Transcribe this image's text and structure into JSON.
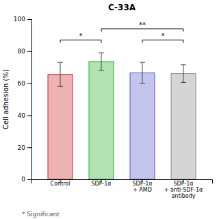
{
  "chart_data": {
    "type": "bar",
    "title": "C-33A",
    "categories": [
      "Control",
      "SDF-1α",
      "SDF-1α\n+ AMD",
      "SDF-1α\n+ anti-SDF-1α\nantibody"
    ],
    "values": [
      65.5,
      73.5,
      66.5,
      66.0
    ],
    "errors": [
      7.5,
      5.5,
      6.5,
      5.5
    ],
    "colors": [
      "#cc2222",
      "#22aa22",
      "#5555cc",
      "#888888"
    ],
    "ylim": [
      0,
      100
    ],
    "yticks": [
      0,
      20,
      40,
      60,
      80,
      100
    ],
    "ylabel": "Cell adhesion (%)",
    "grid": false,
    "brackets": [
      {
        "x1": 0,
        "x2": 1,
        "y": 87,
        "label": "*"
      },
      {
        "x1": 1,
        "x2": 3,
        "y": 94,
        "label": "**"
      },
      {
        "x1": 2,
        "x2": 3,
        "y": 87,
        "label": "*"
      }
    ],
    "footnote": "* Significant"
  }
}
